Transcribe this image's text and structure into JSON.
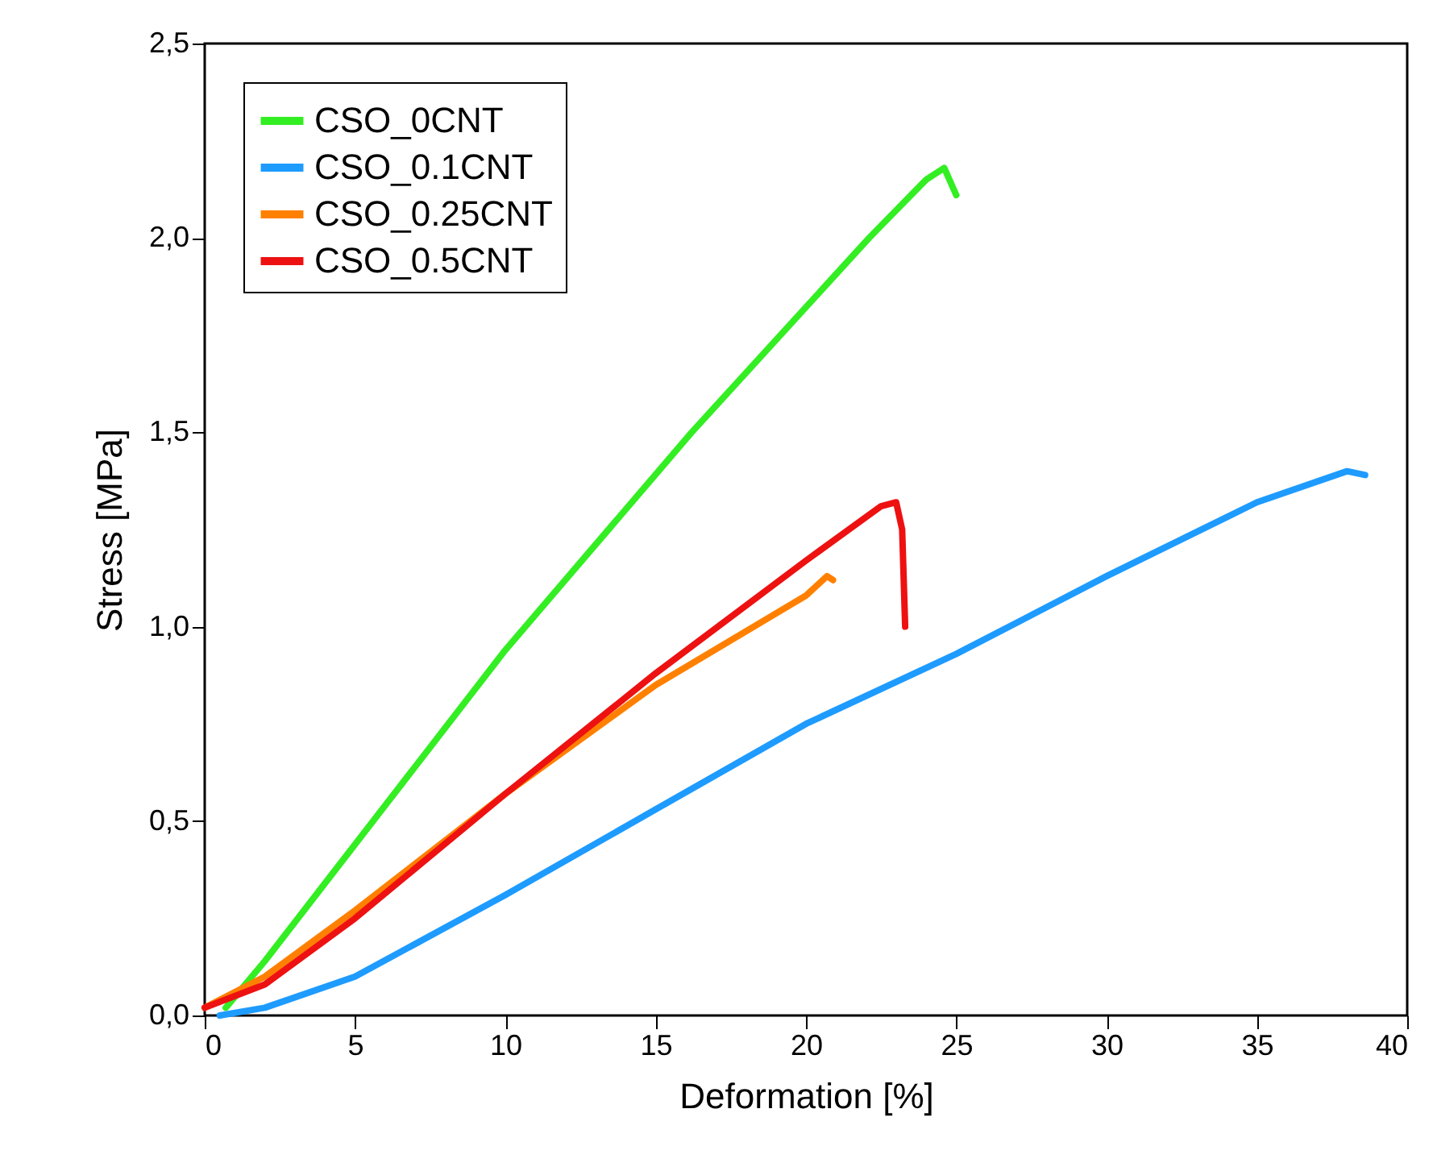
{
  "chart_data": {
    "type": "line",
    "xlabel": "Deformation [%]",
    "ylabel": "Stress [MPa]",
    "xlim": [
      0,
      40
    ],
    "xticks": [
      0,
      5,
      10,
      15,
      20,
      25,
      30,
      35,
      40
    ],
    "ylim": [
      0,
      2.5
    ],
    "yticks": [
      {
        "value": 0,
        "label": "0,0"
      },
      {
        "value": 0.5,
        "label": "0,5"
      },
      {
        "value": 1,
        "label": "1,0"
      },
      {
        "value": 1.5,
        "label": "1,5"
      },
      {
        "value": 2,
        "label": "2,0"
      },
      {
        "value": 2.5,
        "label": "2,5"
      }
    ],
    "grid": false,
    "legend": "top left",
    "line_style": "solid",
    "series": [
      {
        "name": "CSO_0CNT",
        "color": "#33ee22",
        "x": [
          0.7,
          2,
          5,
          10,
          16.2,
          22.1,
          24,
          24.6,
          25.0
        ],
        "values": [
          0.02,
          0.14,
          0.44,
          0.94,
          1.5,
          2.0,
          2.15,
          2.18,
          2.11
        ]
      },
      {
        "name": "CSO_0.1CNT",
        "color": "#1e9bff",
        "x": [
          0.5,
          2,
          5,
          10,
          15,
          20,
          25,
          30,
          35,
          38,
          38.6
        ],
        "values": [
          0,
          0.02,
          0.1,
          0.31,
          0.53,
          0.75,
          0.93,
          1.13,
          1.32,
          1.4,
          1.39
        ]
      },
      {
        "name": "CSO_0.25CNT",
        "color": "#ff8000",
        "x": [
          0,
          2,
          5,
          10,
          15,
          20,
          20.7,
          20.9
        ],
        "values": [
          0.02,
          0.1,
          0.27,
          0.57,
          0.85,
          1.08,
          1.13,
          1.12
        ]
      },
      {
        "name": "CSO_0.5CNT",
        "color": "#ee1111",
        "x": [
          0,
          2,
          5,
          10,
          15,
          20,
          22.5,
          23.0,
          23.2,
          23.3
        ],
        "values": [
          0.02,
          0.08,
          0.25,
          0.57,
          0.88,
          1.17,
          1.31,
          1.32,
          1.25,
          1.0
        ]
      }
    ]
  }
}
